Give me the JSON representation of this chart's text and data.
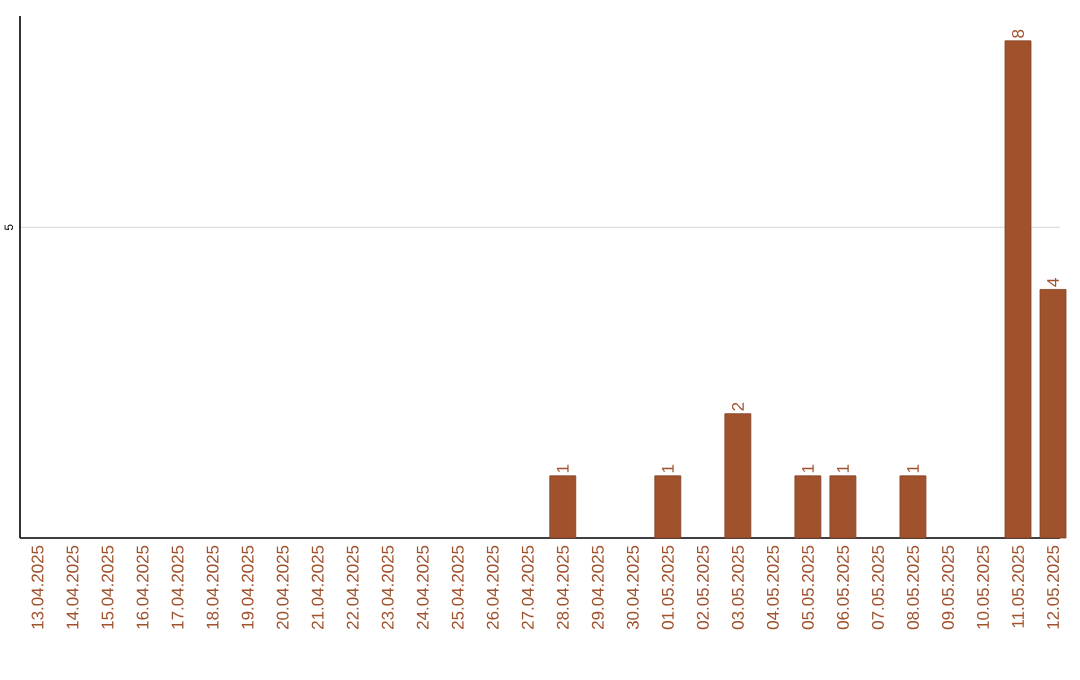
{
  "chart_data": {
    "type": "bar",
    "categories": [
      "13.04.2025",
      "14.04.2025",
      "15.04.2025",
      "16.04.2025",
      "17.04.2025",
      "18.04.2025",
      "19.04.2025",
      "20.04.2025",
      "21.04.2025",
      "22.04.2025",
      "23.04.2025",
      "24.04.2025",
      "25.04.2025",
      "26.04.2025",
      "27.04.2025",
      "28.04.2025",
      "29.04.2025",
      "30.04.2025",
      "01.05.2025",
      "02.05.2025",
      "03.05.2025",
      "04.05.2025",
      "05.05.2025",
      "06.05.2025",
      "07.05.2025",
      "08.05.2025",
      "09.05.2025",
      "10.05.2025",
      "11.05.2025",
      "12.05.2025"
    ],
    "values": [
      null,
      null,
      null,
      null,
      null,
      null,
      null,
      null,
      null,
      null,
      null,
      null,
      null,
      null,
      null,
      1,
      null,
      null,
      1,
      null,
      2,
      null,
      1,
      1,
      null,
      1,
      null,
      null,
      8,
      4
    ],
    "data_labels": true,
    "color": "#a0522d",
    "ylim": [
      0,
      8.4
    ],
    "yticks": [
      5
    ],
    "grid": "y"
  }
}
